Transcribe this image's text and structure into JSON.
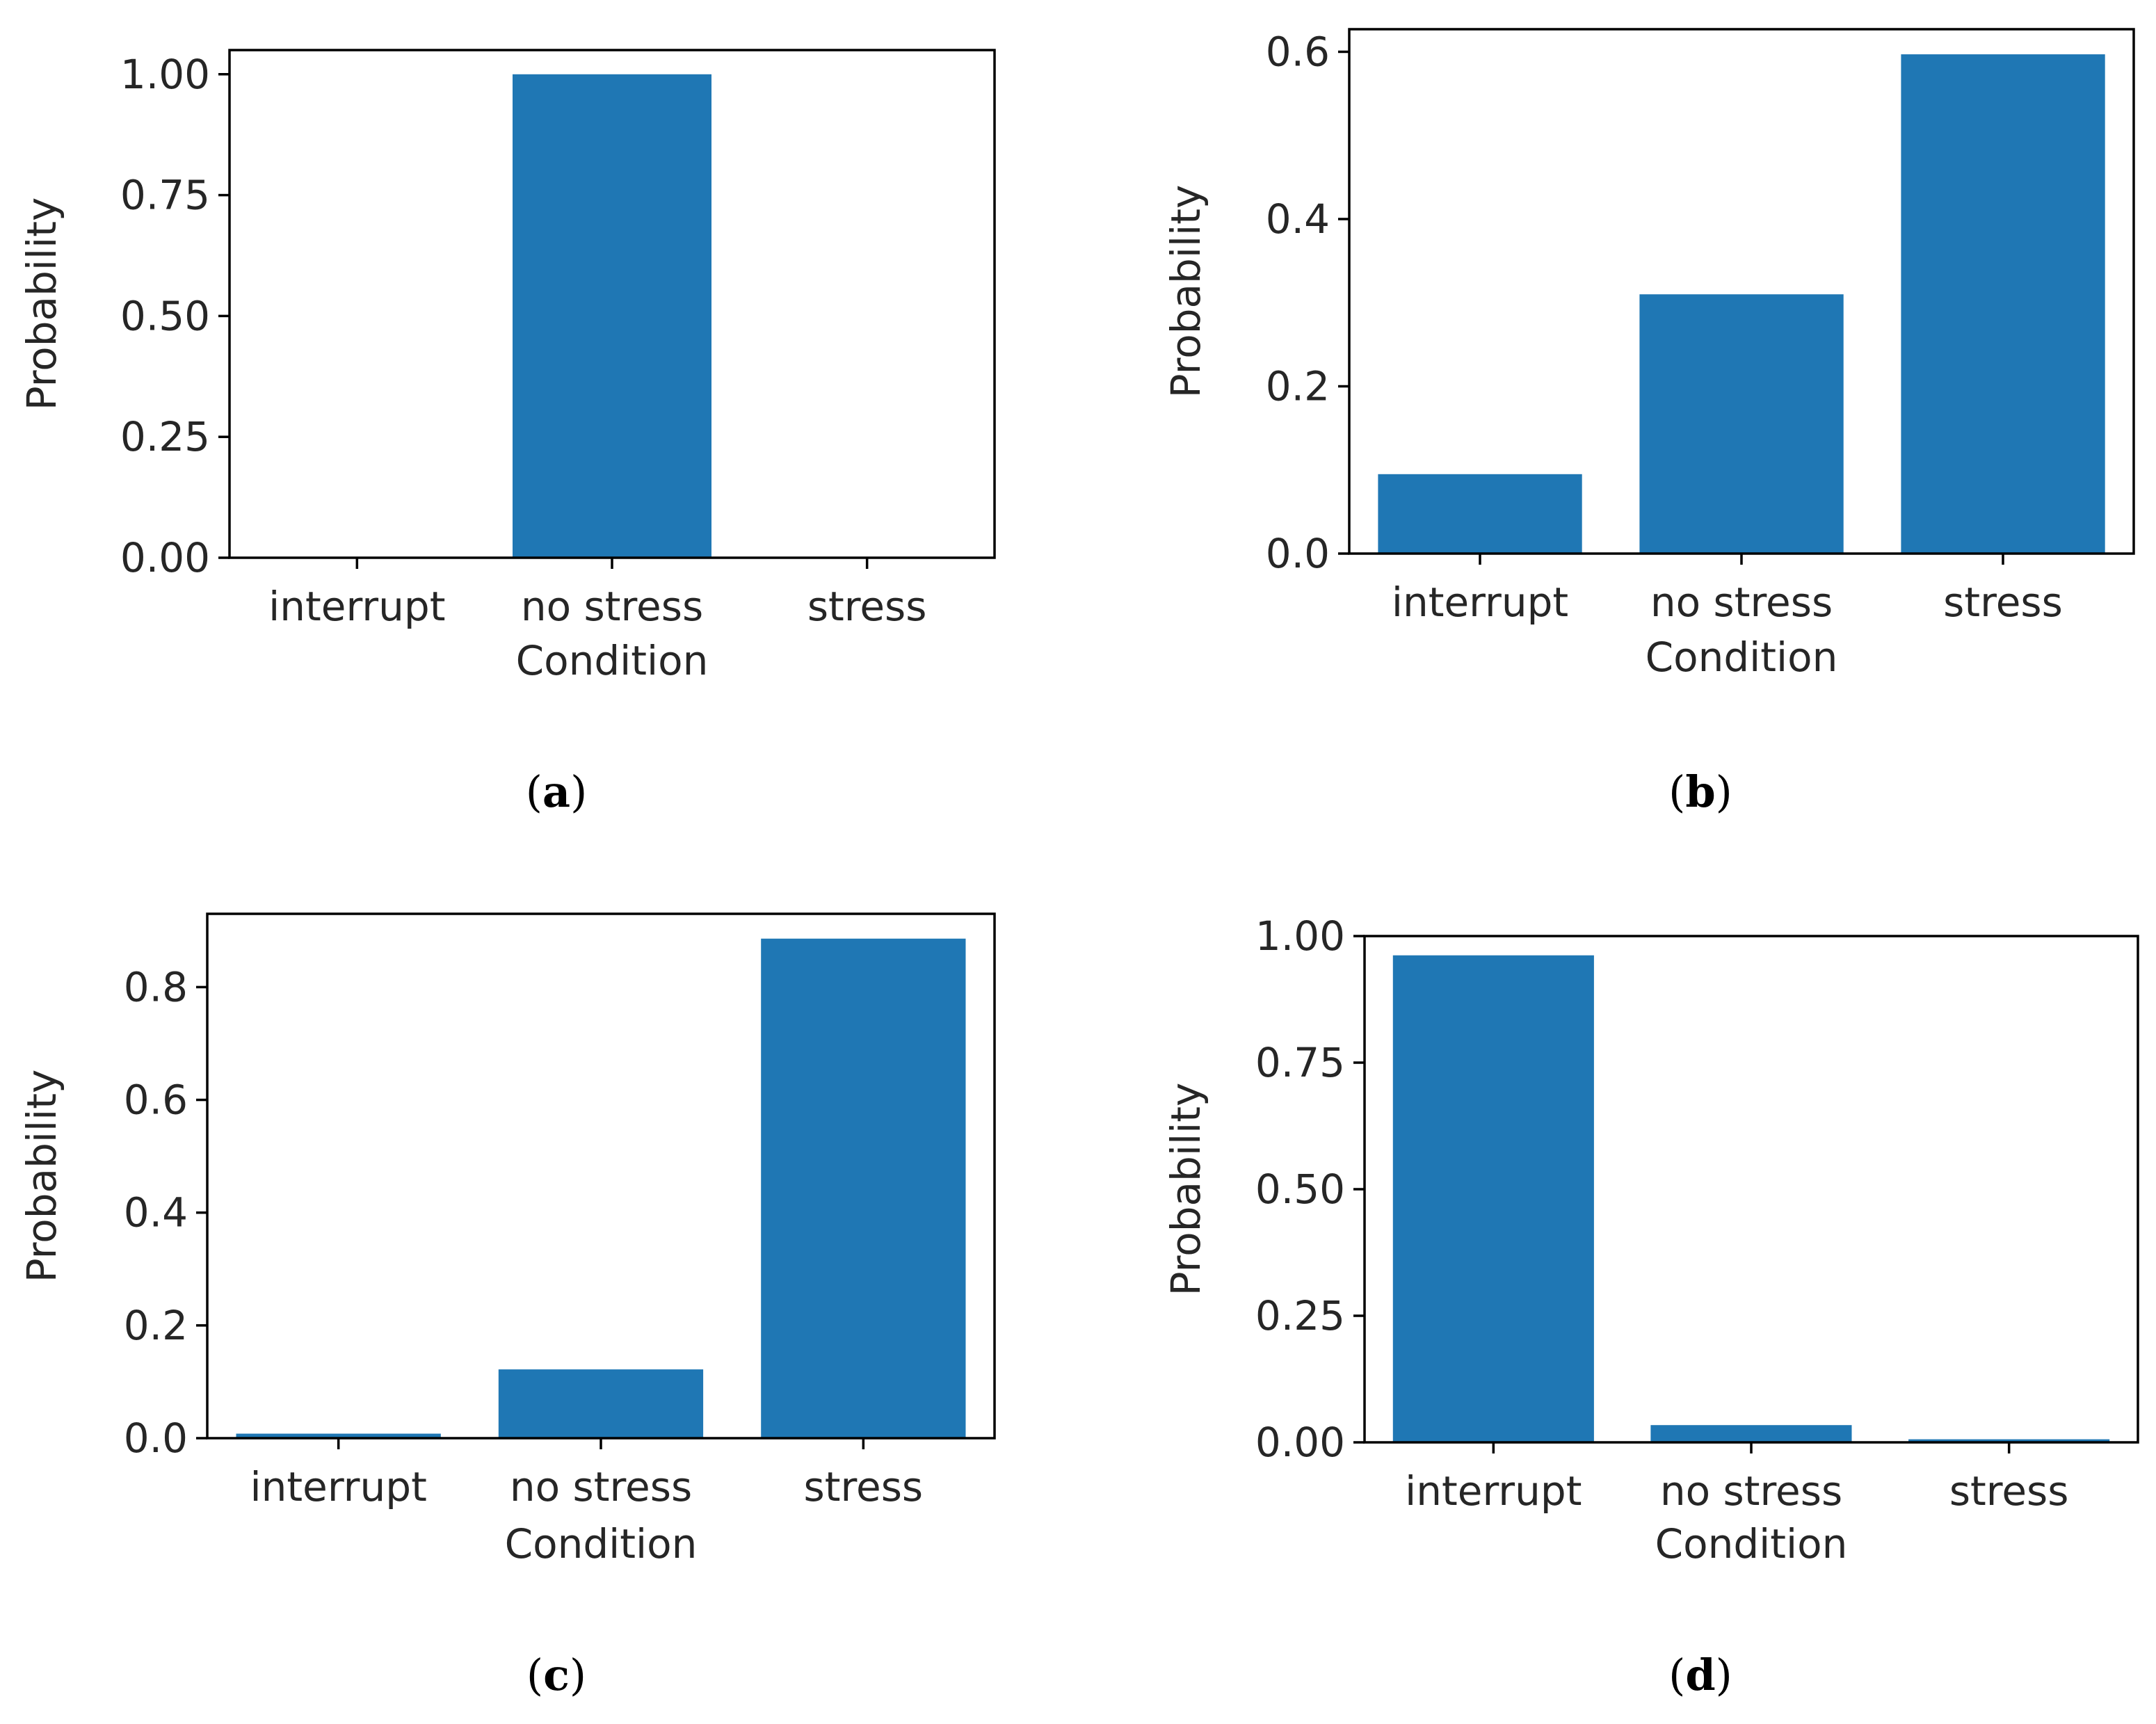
{
  "chart_data": [
    {
      "type": "bar",
      "caption": "(a)",
      "caption_letter": "a",
      "categories": [
        "interrupt",
        "no stress",
        "stress"
      ],
      "values": [
        0.0,
        1.0,
        0.0
      ],
      "title": "",
      "xlabel": "Condition",
      "ylabel": "Probability",
      "ylim": [
        0,
        1.05
      ],
      "yticks": [
        "0.00",
        "0.25",
        "0.50",
        "0.75",
        "1.00"
      ],
      "bar_color": "#1f77b4",
      "grid": false
    },
    {
      "type": "bar",
      "caption": "(b)",
      "caption_letter": "b",
      "categories": [
        "interrupt",
        "no stress",
        "stress"
      ],
      "values": [
        0.095,
        0.31,
        0.597
      ],
      "title": "",
      "xlabel": "Condition",
      "ylabel": "Probability",
      "ylim": [
        0,
        0.627
      ],
      "yticks": [
        "0.0",
        "0.2",
        "0.4",
        "0.6"
      ],
      "bar_color": "#1f77b4",
      "grid": false
    },
    {
      "type": "bar",
      "caption": "(c)",
      "caption_letter": "c",
      "categories": [
        "interrupt",
        "no stress",
        "stress"
      ],
      "values": [
        0.008,
        0.122,
        0.886
      ],
      "title": "",
      "xlabel": "Condition",
      "ylabel": "Probability",
      "ylim": [
        0,
        0.93
      ],
      "yticks": [
        "0.0",
        "0.2",
        "0.4",
        "0.6",
        "0.8"
      ],
      "bar_color": "#1f77b4",
      "grid": false
    },
    {
      "type": "bar",
      "caption": "(d)",
      "caption_letter": "d",
      "categories": [
        "interrupt",
        "no stress",
        "stress"
      ],
      "values": [
        0.962,
        0.034,
        0.006
      ],
      "title": "",
      "xlabel": "Condition",
      "ylabel": "Probability",
      "ylim": [
        0,
        1.0
      ],
      "yticks": [
        "0.00",
        "0.25",
        "0.50",
        "0.75",
        "1.00"
      ],
      "bar_color": "#1f77b4",
      "grid": false
    }
  ]
}
